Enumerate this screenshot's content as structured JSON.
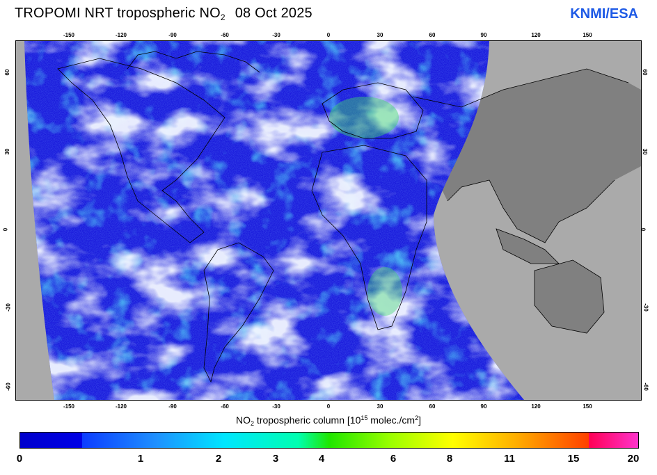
{
  "title": {
    "prefix": "TROPOMI  NRT tropospheric NO",
    "subscript": "2",
    "date": "08 Oct 2025"
  },
  "brand": "KNMI/ESA",
  "map": {
    "lon_ticks": [
      "-150",
      "-120",
      "-90",
      "-60",
      "-30",
      "0",
      "30",
      "60",
      "90",
      "120",
      "150"
    ],
    "lat_ticks": [
      "60",
      "30",
      "0",
      "-30",
      "-60"
    ],
    "colors": {
      "no_data": "#aaaaaa",
      "land_night": "#808080",
      "low": "#1a1adc",
      "mid": "#2f6cf5",
      "cyan": "#19c8f0",
      "cloud": "#dfe6fb",
      "high": "#3dd66a"
    }
  },
  "colorbar": {
    "label_pre": "NO",
    "label_sub": "2",
    "label_mid": " tropospheric column [10",
    "label_sup": "15",
    "label_post": " molec./cm",
    "label_sup2": "2",
    "label_end": "]",
    "ticks": [
      "0",
      "1",
      "2",
      "3",
      "4",
      "6",
      "8",
      "11",
      "15",
      "20"
    ],
    "stops": [
      {
        "c": "#0000cc",
        "p": 0
      },
      {
        "c": "#0000e6",
        "p": 0.1
      },
      {
        "c": "#0c3cff",
        "p": 0.1
      },
      {
        "c": "#1e90ff",
        "p": 0.22
      },
      {
        "c": "#00e6ff",
        "p": 0.33
      },
      {
        "c": "#00ffb0",
        "p": 0.45
      },
      {
        "c": "#1fe600",
        "p": 0.5
      },
      {
        "c": "#9cff00",
        "p": 0.6
      },
      {
        "c": "#ffff00",
        "p": 0.7
      },
      {
        "c": "#ffb000",
        "p": 0.8
      },
      {
        "c": "#ff4000",
        "p": 0.92
      },
      {
        "c": "#ff0055",
        "p": 0.92
      },
      {
        "c": "#ff33cc",
        "p": 1
      }
    ]
  }
}
